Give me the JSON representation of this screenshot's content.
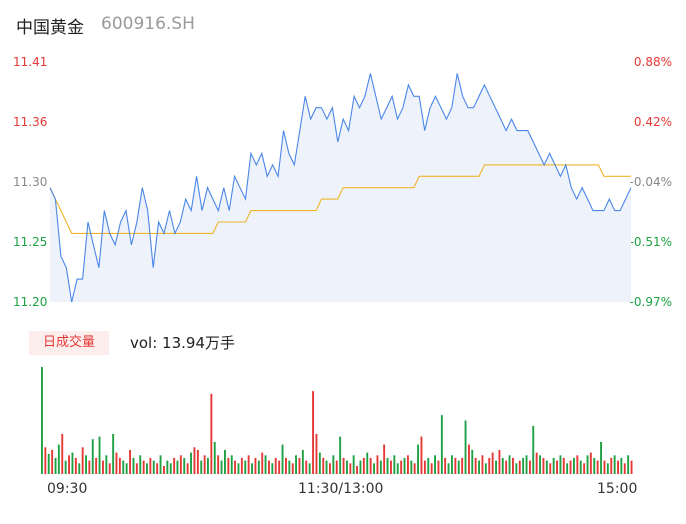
{
  "header": {
    "name": "中国黄金",
    "code": "600916.SH"
  },
  "volume_panel": {
    "badge": "日成交量",
    "vol_text": "vol: 13.94万手"
  },
  "colors": {
    "up": "#e53935",
    "down": "#1ea044",
    "neutral": "#888888",
    "price_line": "#4a86e8",
    "avg_line": "#f0b429",
    "area_fill": "#eef2fb"
  },
  "chart_data": [
    {
      "type": "line",
      "title": "",
      "y_left_ticks": [
        "11.41",
        "11.36",
        "11.30",
        "11.25",
        "11.20"
      ],
      "y_right_ticks": [
        "0.88%",
        "0.42%",
        "-0.04%",
        "-0.51%",
        "-0.97%"
      ],
      "x_ticks": [
        "09:30",
        "11:30/13:00",
        "15:00"
      ],
      "ylim": [
        11.2,
        11.41
      ],
      "series": [
        {
          "values": [
            11.3,
            11.29,
            11.24,
            11.23,
            11.2,
            11.22,
            11.22,
            11.27,
            11.25,
            11.23,
            11.28,
            11.26,
            11.25,
            11.27,
            11.28,
            11.25,
            11.27,
            11.3,
            11.28,
            11.23,
            11.27,
            11.26,
            11.28,
            11.26,
            11.27,
            11.29,
            11.28,
            11.31,
            11.28,
            11.3,
            11.29,
            11.28,
            11.3,
            11.28,
            11.31,
            11.3,
            11.29,
            11.33,
            11.32,
            11.33,
            11.31,
            11.32,
            11.31,
            11.35,
            11.33,
            11.32,
            11.35,
            11.38,
            11.36,
            11.37,
            11.37,
            11.36,
            11.37,
            11.34,
            11.36,
            11.35,
            11.38,
            11.37,
            11.38,
            11.4,
            11.38,
            11.36,
            11.37,
            11.38,
            11.36,
            11.37,
            11.39,
            11.38,
            11.38,
            11.35,
            11.37,
            11.38,
            11.37,
            11.36,
            11.37,
            11.4,
            11.38,
            11.37,
            11.37,
            11.38,
            11.39,
            11.38,
            11.37,
            11.36,
            11.35,
            11.36,
            11.35,
            11.35,
            11.35,
            11.34,
            11.33,
            11.32,
            11.33,
            11.32,
            11.31,
            11.32,
            11.3,
            11.29,
            11.3,
            11.29,
            11.28,
            11.28,
            11.28,
            11.29,
            11.28,
            11.28,
            11.29,
            11.3
          ]
        },
        {
          "values": [
            11.3,
            11.29,
            11.28,
            11.27,
            11.26,
            11.26,
            11.26,
            11.26,
            11.26,
            11.26,
            11.26,
            11.26,
            11.26,
            11.26,
            11.26,
            11.26,
            11.26,
            11.26,
            11.26,
            11.26,
            11.26,
            11.26,
            11.26,
            11.26,
            11.26,
            11.26,
            11.26,
            11.26,
            11.26,
            11.26,
            11.26,
            11.27,
            11.27,
            11.27,
            11.27,
            11.27,
            11.27,
            11.28,
            11.28,
            11.28,
            11.28,
            11.28,
            11.28,
            11.28,
            11.28,
            11.28,
            11.28,
            11.28,
            11.28,
            11.28,
            11.29,
            11.29,
            11.29,
            11.29,
            11.3,
            11.3,
            11.3,
            11.3,
            11.3,
            11.3,
            11.3,
            11.3,
            11.3,
            11.3,
            11.3,
            11.3,
            11.3,
            11.3,
            11.31,
            11.31,
            11.31,
            11.31,
            11.31,
            11.31,
            11.31,
            11.31,
            11.31,
            11.31,
            11.31,
            11.31,
            11.32,
            11.32,
            11.32,
            11.32,
            11.32,
            11.32,
            11.32,
            11.32,
            11.32,
            11.32,
            11.32,
            11.32,
            11.32,
            11.32,
            11.32,
            11.32,
            11.32,
            11.32,
            11.32,
            11.32,
            11.32,
            11.32,
            11.31,
            11.31,
            11.31,
            11.31,
            11.31,
            11.31
          ]
        }
      ]
    },
    {
      "type": "bar",
      "title": "",
      "values": [
        80,
        20,
        15,
        18,
        12,
        22,
        30,
        10,
        14,
        16,
        12,
        8,
        20,
        14,
        10,
        26,
        12,
        28,
        10,
        14,
        8,
        30,
        16,
        12,
        10,
        8,
        18,
        12,
        8,
        14,
        10,
        8,
        12,
        10,
        8,
        14,
        6,
        10,
        8,
        12,
        10,
        14,
        12,
        8,
        16,
        20,
        18,
        10,
        14,
        12,
        60,
        24,
        14,
        10,
        18,
        12,
        14,
        10,
        8,
        12,
        10,
        14,
        8,
        12,
        10,
        16,
        14,
        10,
        8,
        12,
        10,
        22,
        12,
        10,
        8,
        14,
        12,
        18,
        10,
        8,
        62,
        30,
        16,
        12,
        10,
        8,
        14,
        10,
        28,
        12,
        10,
        8,
        14,
        6,
        10,
        12,
        16,
        12,
        8,
        14,
        10,
        22,
        12,
        10,
        14,
        8,
        10,
        12,
        14,
        10,
        8,
        22,
        28,
        10,
        12,
        8,
        14,
        10,
        44,
        12,
        8,
        14,
        12,
        10,
        12,
        40,
        22,
        18,
        12,
        10,
        14,
        8,
        12,
        16,
        10,
        18,
        12,
        10,
        14,
        12,
        8,
        10,
        12,
        14,
        10,
        36,
        16,
        14,
        12,
        10,
        8,
        12,
        10,
        14,
        12,
        8,
        10,
        12,
        14,
        10,
        8,
        14,
        16,
        12,
        10,
        24,
        10,
        8,
        12,
        14,
        10,
        12,
        8,
        14,
        10
      ],
      "colors_seq": [
        "g",
        "r",
        "g",
        "r",
        "g",
        "g",
        "r",
        "g",
        "r",
        "g",
        "r",
        "g",
        "r",
        "g",
        "r",
        "g",
        "r",
        "g",
        "r",
        "g",
        "r",
        "g",
        "r",
        "r",
        "g",
        "g",
        "r",
        "g",
        "r",
        "g",
        "r",
        "g",
        "r",
        "g",
        "r",
        "g",
        "r",
        "g",
        "g",
        "r",
        "g",
        "r",
        "g",
        "r",
        "g",
        "r",
        "r",
        "g",
        "r",
        "g",
        "r",
        "g",
        "r",
        "g",
        "g",
        "r",
        "g",
        "r",
        "g",
        "r",
        "g",
        "r",
        "g",
        "r",
        "g",
        "r",
        "g",
        "r",
        "g",
        "r",
        "r",
        "g",
        "r",
        "g",
        "r",
        "g",
        "r",
        "g",
        "r",
        "g",
        "r",
        "r",
        "g",
        "r",
        "g",
        "r",
        "g",
        "r",
        "g",
        "r",
        "g",
        "r",
        "g",
        "r",
        "g",
        "r",
        "g",
        "r",
        "g",
        "r",
        "g",
        "r",
        "g",
        "r",
        "g",
        "g",
        "r",
        "g",
        "r",
        "g",
        "r",
        "g",
        "r",
        "r",
        "g",
        "r",
        "g",
        "r",
        "g",
        "r",
        "g",
        "g",
        "r",
        "g",
        "r",
        "g",
        "r",
        "g",
        "r",
        "g",
        "r",
        "g",
        "r",
        "r",
        "g",
        "r",
        "g",
        "r",
        "g",
        "r",
        "g",
        "r",
        "g",
        "g",
        "r",
        "g",
        "r",
        "g",
        "r",
        "g",
        "r",
        "g",
        "r",
        "g",
        "r",
        "g",
        "r",
        "g",
        "r",
        "g",
        "r",
        "g",
        "r",
        "g",
        "r",
        "g",
        "r",
        "g",
        "r",
        "g",
        "r",
        "g",
        "r",
        "g",
        "r",
        "g"
      ]
    }
  ]
}
